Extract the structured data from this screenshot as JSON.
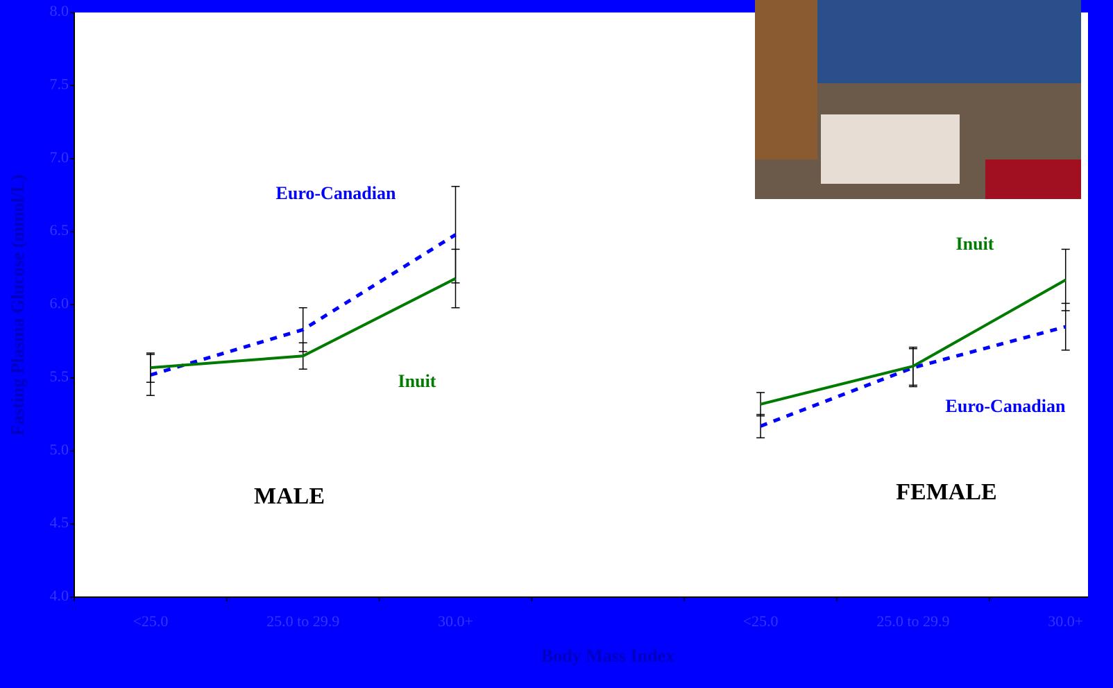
{
  "chart_data": {
    "type": "line",
    "y_label": "Fasting Plasma Glucose (mmol/L)",
    "x_label": "Body Mass Index",
    "categories": [
      "<25.0",
      "25.0 to 29.9",
      "30.0+",
      null,
      "<25.0",
      "25.0 to 29.9",
      "30.0+"
    ],
    "series": [
      {
        "name": "Euro-Canadian",
        "color": "#0000ff",
        "dashed": true,
        "values": [
          5.52,
          5.83,
          6.48,
          null,
          5.17,
          5.57,
          5.85
        ],
        "errors": [
          0.14,
          0.15,
          0.33,
          null,
          0.08,
          0.13,
          0.16
        ]
      },
      {
        "name": "Inuit",
        "color": "#007a00",
        "dashed": false,
        "values": [
          5.57,
          5.65,
          6.18,
          null,
          5.32,
          5.58,
          6.17
        ],
        "errors": [
          0.1,
          0.09,
          0.2,
          null,
          0.08,
          0.13,
          0.21
        ]
      }
    ],
    "annotations": [
      "Euro-Canadian",
      "Inuit",
      "MALE",
      "Inuit",
      "Euro-Canadian",
      "FEMALE"
    ],
    "ylim": [
      4.0,
      8.0
    ],
    "yticks": [
      {
        "value": 4,
        "label": "4.0"
      },
      4.5,
      {
        "value": 5,
        "label": "5.0"
      },
      5.5,
      {
        "value": 6,
        "label": "6.0"
      },
      6.5,
      {
        "value": 7,
        "label": "7.0"
      },
      7.5,
      {
        "value": 8,
        "label": "8.0"
      }
    ]
  }
}
